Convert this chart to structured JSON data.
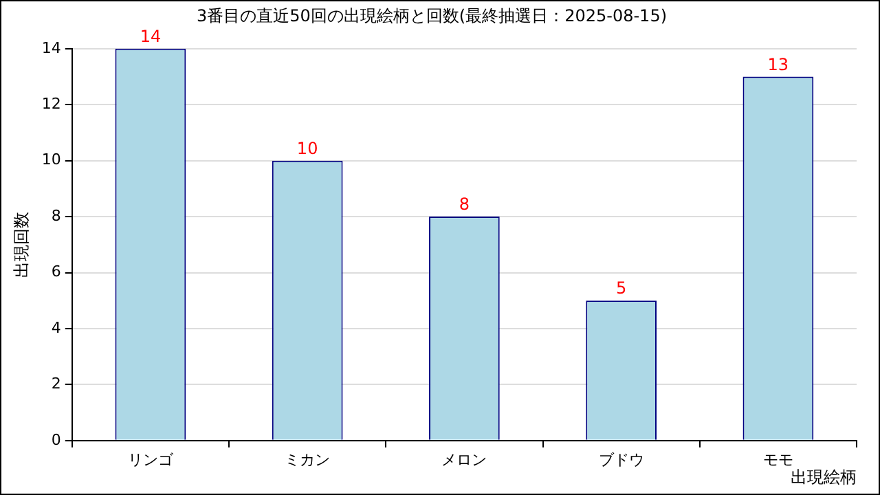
{
  "chart_data": {
    "type": "bar",
    "title": "3番目の直近50回の出現絵柄と回数(最終抽選日：2025-08-15)",
    "xlabel": "出現絵柄",
    "ylabel": "出現回数",
    "categories": [
      "リンゴ",
      "ミカン",
      "メロン",
      "ブドウ",
      "モモ"
    ],
    "values": [
      14,
      10,
      8,
      5,
      13
    ],
    "color": "#add8e6",
    "ylim": [
      0,
      14
    ],
    "yticks": [
      0,
      2,
      4,
      6,
      8,
      10,
      12,
      14
    ],
    "grid": "y",
    "data_labels": true
  }
}
